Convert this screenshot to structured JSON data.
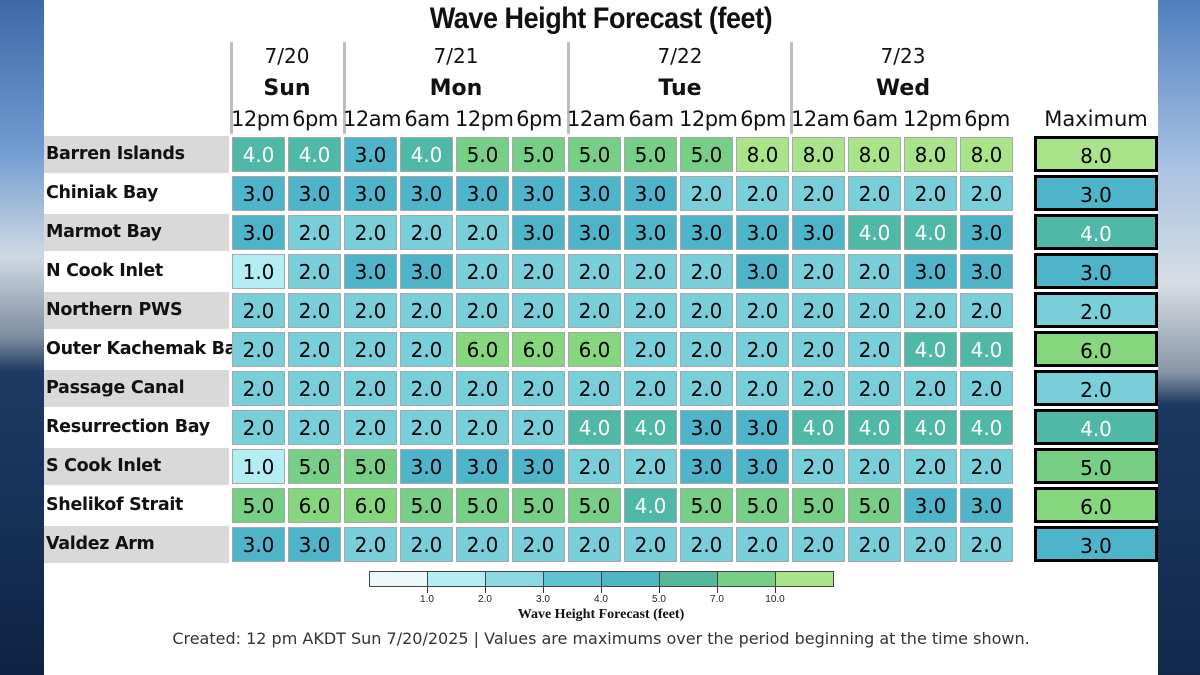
{
  "title": "Wave Height Forecast (feet)",
  "days": [
    {
      "date": "7/20",
      "dow": "Sun"
    },
    {
      "date": "7/21",
      "dow": "Mon"
    },
    {
      "date": "7/22",
      "dow": "Tue"
    },
    {
      "date": "7/23",
      "dow": "Wed"
    }
  ],
  "times": [
    "12pm",
    "6pm",
    "12am",
    "6am",
    "12pm",
    "6pm",
    "12am",
    "6am",
    "12pm",
    "6pm",
    "12am",
    "6am",
    "12pm",
    "6pm"
  ],
  "max_header": "Maximum",
  "rows": [
    {
      "name": "Barren Islands",
      "values": [
        "4.0",
        "4.0",
        "3.0",
        "4.0",
        "5.0",
        "5.0",
        "5.0",
        "5.0",
        "5.0",
        "8.0",
        "8.0",
        "8.0",
        "8.0",
        "8.0"
      ],
      "max": "8.0"
    },
    {
      "name": "Chiniak Bay",
      "values": [
        "3.0",
        "3.0",
        "3.0",
        "3.0",
        "3.0",
        "3.0",
        "3.0",
        "3.0",
        "2.0",
        "2.0",
        "2.0",
        "2.0",
        "2.0",
        "2.0"
      ],
      "max": "3.0"
    },
    {
      "name": "Marmot Bay",
      "values": [
        "3.0",
        "2.0",
        "2.0",
        "2.0",
        "2.0",
        "3.0",
        "3.0",
        "3.0",
        "3.0",
        "3.0",
        "3.0",
        "4.0",
        "4.0",
        "3.0"
      ],
      "max": "4.0"
    },
    {
      "name": "N Cook Inlet",
      "values": [
        "1.0",
        "2.0",
        "3.0",
        "3.0",
        "2.0",
        "2.0",
        "2.0",
        "2.0",
        "2.0",
        "3.0",
        "2.0",
        "2.0",
        "3.0",
        "3.0"
      ],
      "max": "3.0"
    },
    {
      "name": "Northern PWS",
      "values": [
        "2.0",
        "2.0",
        "2.0",
        "2.0",
        "2.0",
        "2.0",
        "2.0",
        "2.0",
        "2.0",
        "2.0",
        "2.0",
        "2.0",
        "2.0",
        "2.0"
      ],
      "max": "2.0"
    },
    {
      "name": "Outer Kachemak Bay",
      "values": [
        "2.0",
        "2.0",
        "2.0",
        "2.0",
        "6.0",
        "6.0",
        "6.0",
        "2.0",
        "2.0",
        "2.0",
        "2.0",
        "2.0",
        "4.0",
        "4.0"
      ],
      "max": "6.0"
    },
    {
      "name": "Passage  Canal",
      "values": [
        "2.0",
        "2.0",
        "2.0",
        "2.0",
        "2.0",
        "2.0",
        "2.0",
        "2.0",
        "2.0",
        "2.0",
        "2.0",
        "2.0",
        "2.0",
        "2.0"
      ],
      "max": "2.0"
    },
    {
      "name": "Resurrection Bay",
      "values": [
        "2.0",
        "2.0",
        "2.0",
        "2.0",
        "2.0",
        "2.0",
        "4.0",
        "4.0",
        "3.0",
        "3.0",
        "4.0",
        "4.0",
        "4.0",
        "4.0"
      ],
      "max": "4.0"
    },
    {
      "name": "S Cook Inlet",
      "values": [
        "1.0",
        "5.0",
        "5.0",
        "3.0",
        "3.0",
        "3.0",
        "2.0",
        "2.0",
        "3.0",
        "3.0",
        "2.0",
        "2.0",
        "2.0",
        "2.0"
      ],
      "max": "5.0"
    },
    {
      "name": "Shelikof Strait",
      "values": [
        "5.0",
        "6.0",
        "6.0",
        "5.0",
        "5.0",
        "5.0",
        "5.0",
        "4.0",
        "5.0",
        "5.0",
        "5.0",
        "5.0",
        "3.0",
        "3.0"
      ],
      "max": "6.0"
    },
    {
      "name": "Valdez Arm",
      "values": [
        "3.0",
        "3.0",
        "2.0",
        "2.0",
        "2.0",
        "2.0",
        "2.0",
        "2.0",
        "2.0",
        "2.0",
        "2.0",
        "2.0",
        "2.0",
        "2.0"
      ],
      "max": "3.0"
    }
  ],
  "color_scale": {
    "1.0": "#b3eef4",
    "2.0": "#78cfd9",
    "3.0": "#4db4c9",
    "4.0": "#4fb8a6",
    "5.0": "#76cf85",
    "6.0": "#86d67e",
    "8.0": "#a9e38a"
  },
  "colorbar": {
    "ticks": [
      "1.0",
      "2.0",
      "3.0",
      "4.0",
      "5.0",
      "7.0",
      "10.0"
    ],
    "colors": [
      "#ebf9fb",
      "#b3eef4",
      "#8ad8e2",
      "#5fc3d2",
      "#4eb5c4",
      "#55b89c",
      "#76cf85",
      "#a9e38a"
    ],
    "title": "Wave Height Forecast (feet)"
  },
  "footer": "Created: 12 pm AKDT Sun 7/20/2025  |  Values are maximums over the period beginning at the time shown."
}
